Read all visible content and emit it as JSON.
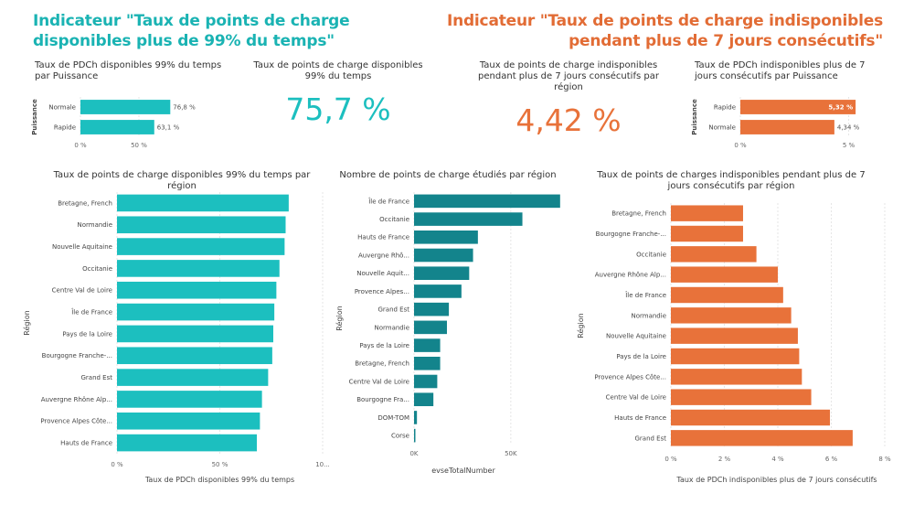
{
  "colors": {
    "teal": "#1cbfbf",
    "darkteal": "#13848c",
    "orange": "#e8723a",
    "axis": "#666666",
    "grid": "#e6e6e6"
  },
  "left_title": "Indicateur \"Taux de points de charge disponibles plus de 99% du temps\"",
  "right_title": "Indicateur \"Taux de points de charge indisponibles pendant plus de 7 jours consécutifs\"",
  "kpi_left": {
    "caption": "Taux de points de charge disponibles 99% du temps",
    "value": "75,7 %"
  },
  "kpi_right": {
    "caption": "Taux de points de charge indisponibles pendant plus de 7 jours consécutifs par région",
    "value": "4,42 %"
  },
  "chart_data": [
    {
      "id": "c1",
      "type": "bar",
      "orientation": "horizontal",
      "title": "Taux de PDCh disponibles 99% du temps par Puissance",
      "ylabel": "Puissance",
      "xlabel": "",
      "categories": [
        "Normale",
        "Rapide"
      ],
      "values": [
        76.8,
        63.1
      ],
      "value_labels": [
        "76,8 %",
        "63,1 %"
      ],
      "xlim": [
        0,
        100
      ],
      "xticks": [
        0,
        50
      ],
      "tick_labels": [
        "0 %",
        "50 %"
      ],
      "color": "#1cbfbf"
    },
    {
      "id": "c2",
      "type": "bar",
      "orientation": "horizontal",
      "title": "Taux de PDCh indisponibles plus de 7 jours consécutifs par Puissance",
      "ylabel": "Puissance",
      "xlabel": "",
      "categories": [
        "Rapide",
        "Normale"
      ],
      "values": [
        5.32,
        4.34
      ],
      "value_labels": [
        "5,32 %",
        "4,34 %"
      ],
      "xlim": [
        0,
        5.4
      ],
      "xticks": [
        0,
        5
      ],
      "tick_labels": [
        "0 %",
        "5 %"
      ],
      "color": "#e8723a"
    },
    {
      "id": "c3",
      "type": "bar",
      "orientation": "horizontal",
      "title": "Taux de points de charge disponibles 99% du temps par région",
      "ylabel": "Région",
      "xlabel": "Taux de PDCh disponibles 99% du temps",
      "categories": [
        "Bretagne, French",
        "Normandie",
        "Nouvelle Aquitaine",
        "Occitanie",
        "Centre Val de Loire",
        "Île de France",
        "Pays de la Loire",
        "Bourgogne Franche-...",
        "Grand Est",
        "Auvergne Rhône Alp...",
        "Provence Alpes Côte...",
        "Hauts de France"
      ],
      "values": [
        83.5,
        82.0,
        81.5,
        79.0,
        77.5,
        76.5,
        76.0,
        75.5,
        73.5,
        70.5,
        69.5,
        68.0
      ],
      "xlim": [
        0,
        100
      ],
      "xticks": [
        0,
        50,
        100
      ],
      "tick_labels": [
        "0 %",
        "50 %",
        "10..."
      ],
      "color": "#1cbfbf"
    },
    {
      "id": "c4",
      "type": "bar",
      "orientation": "horizontal",
      "title": "Nombre de points de charge étudiés par région",
      "ylabel": "Région",
      "xlabel": "evseTotalNumber",
      "categories": [
        "Île de France",
        "Occitanie",
        "Hauts de France",
        "Auvergne Rhô...",
        "Nouvelle Aquit...",
        "Provence Alpes...",
        "Grand Est",
        "Normandie",
        "Pays de la Loire",
        "Bretagne, French",
        "Centre Val de Loire",
        "Bourgogne Fra...",
        "DOM-TOM",
        "Corse"
      ],
      "values": [
        75500,
        56000,
        33000,
        30500,
        28500,
        24500,
        18000,
        17000,
        13500,
        13500,
        12000,
        10000,
        1500,
        700
      ],
      "xlim": [
        0,
        77000
      ],
      "xticks": [
        0,
        50000
      ],
      "tick_labels": [
        "0K",
        "50K"
      ],
      "color": "#13848c"
    },
    {
      "id": "c5",
      "type": "bar",
      "orientation": "horizontal",
      "title": "Taux de points de charges indisponibles pendant plus de 7 jours consécutifs par région",
      "ylabel": "Région",
      "xlabel": "Taux de PDCh indisponibles plus de 7 jours consécutifs",
      "categories": [
        "Bretagne, French",
        "Bourgogne Franche-...",
        "Occitanie",
        "Auvergne Rhône Alp...",
        "Île de France",
        "Normandie",
        "Nouvelle Aquitaine",
        "Pays de la Loire",
        "Provence Alpes Côte...",
        "Centre Val de Loire",
        "Hauts de France",
        "Grand Est"
      ],
      "values": [
        2.7,
        2.7,
        3.2,
        4.0,
        4.2,
        4.5,
        4.75,
        4.8,
        4.9,
        5.25,
        5.95,
        6.8
      ],
      "xlim": [
        0,
        8
      ],
      "xticks": [
        0,
        2,
        4,
        6,
        8
      ],
      "tick_labels": [
        "0 %",
        "2 %",
        "4 %",
        "6 %",
        "8 %"
      ],
      "color": "#e8723a"
    }
  ]
}
